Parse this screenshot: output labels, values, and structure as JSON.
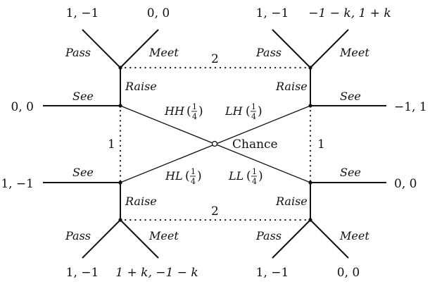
{
  "chance_label": "Chance",
  "info_sets": {
    "top": "2",
    "bottom": "2",
    "left": "1",
    "right": "1"
  },
  "chance_branches": {
    "HH": {
      "name": "HH",
      "prob_num": "1",
      "prob_den": "4"
    },
    "LH": {
      "name": "LH",
      "prob_num": "1",
      "prob_den": "4"
    },
    "HL": {
      "name": "HL",
      "prob_num": "1",
      "prob_den": "4"
    },
    "LL": {
      "name": "LL",
      "prob_num": "1",
      "prob_den": "4"
    }
  },
  "actions": {
    "see": "See",
    "raise": "Raise",
    "pass": "Pass",
    "meet": "Meet"
  },
  "payoffs": {
    "top_left_pass": "1, −1",
    "top_left_meet": "0, 0",
    "top_right_pass": "1, −1",
    "top_right_meet": "−1 − k, 1 + k",
    "left_upper_see": "0, 0",
    "right_upper_see": "−1, 1",
    "left_lower_see": "1, −1",
    "right_lower_see": "0, 0",
    "bottom_left_pass": "1, −1",
    "bottom_left_meet": "1 + k, −1 − k",
    "bottom_right_pass": "1, −1",
    "bottom_right_meet": "0, 0"
  }
}
